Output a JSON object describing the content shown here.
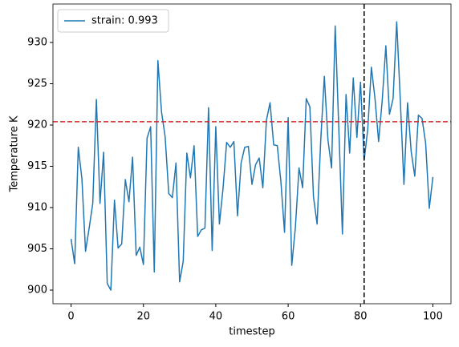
{
  "chart_data": {
    "type": "line",
    "xlabel": "timestep",
    "ylabel": "Temperature K",
    "x": [
      0,
      1,
      2,
      3,
      4,
      5,
      6,
      7,
      8,
      9,
      10,
      11,
      12,
      13,
      14,
      15,
      16,
      17,
      18,
      19,
      20,
      21,
      22,
      23,
      24,
      25,
      26,
      27,
      28,
      29,
      30,
      31,
      32,
      33,
      34,
      35,
      36,
      37,
      38,
      39,
      40,
      41,
      42,
      43,
      44,
      45,
      46,
      47,
      48,
      49,
      50,
      51,
      52,
      53,
      54,
      55,
      56,
      57,
      58,
      59,
      60,
      61,
      62,
      63,
      64,
      65,
      66,
      67,
      68,
      69,
      70,
      71,
      72,
      73,
      74,
      75,
      76,
      77,
      78,
      79,
      80,
      81,
      82,
      83,
      84,
      85,
      86,
      87,
      88,
      89,
      90,
      91,
      92,
      93,
      94,
      95,
      96,
      97,
      98,
      99,
      100
    ],
    "series": [
      {
        "name": "strain: 0.993",
        "color": "#1f77b4",
        "values": [
          906.2,
          903.2,
          917.3,
          913.5,
          904.7,
          907.5,
          910.5,
          923.1,
          910.5,
          916.7,
          900.8,
          900.0,
          910.9,
          905.1,
          905.6,
          913.4,
          910.7,
          916.1,
          904.2,
          905.2,
          903.1,
          918.4,
          919.8,
          902.2,
          927.8,
          921.6,
          918.6,
          911.7,
          911.2,
          915.4,
          901.0,
          903.5,
          916.6,
          913.6,
          917.5,
          906.5,
          907.3,
          907.5,
          922.1,
          904.8,
          919.8,
          908.0,
          912.3,
          917.9,
          917.3,
          918.0,
          909.0,
          915.4,
          917.3,
          917.4,
          912.8,
          915.2,
          916.0,
          912.4,
          920.6,
          922.7,
          917.6,
          917.5,
          913.1,
          907.0,
          920.9,
          903.0,
          907.6,
          914.8,
          912.4,
          923.2,
          922.2,
          911.3,
          908.0,
          918.1,
          925.9,
          918.2,
          914.8,
          932.0,
          919.6,
          906.8,
          923.7,
          916.6,
          925.7,
          918.5,
          925.2,
          915.7,
          919.5,
          927.0,
          923.2,
          918.0,
          923.0,
          929.6,
          921.3,
          923.2,
          932.5,
          923.0,
          912.8,
          922.7,
          916.8,
          913.8,
          921.2,
          920.8,
          917.8,
          909.9,
          913.7
        ]
      }
    ],
    "hline": {
      "value": 920.4,
      "color": "#d62728"
    },
    "vline": {
      "value": 81,
      "color": "#000000"
    },
    "xlim": [
      -5,
      105
    ],
    "ylim": [
      898.35,
      934.66
    ],
    "xticks": [
      0,
      20,
      40,
      60,
      80,
      100
    ],
    "yticks": [
      900,
      905,
      910,
      915,
      920,
      925,
      930
    ],
    "legend": "upper left"
  }
}
